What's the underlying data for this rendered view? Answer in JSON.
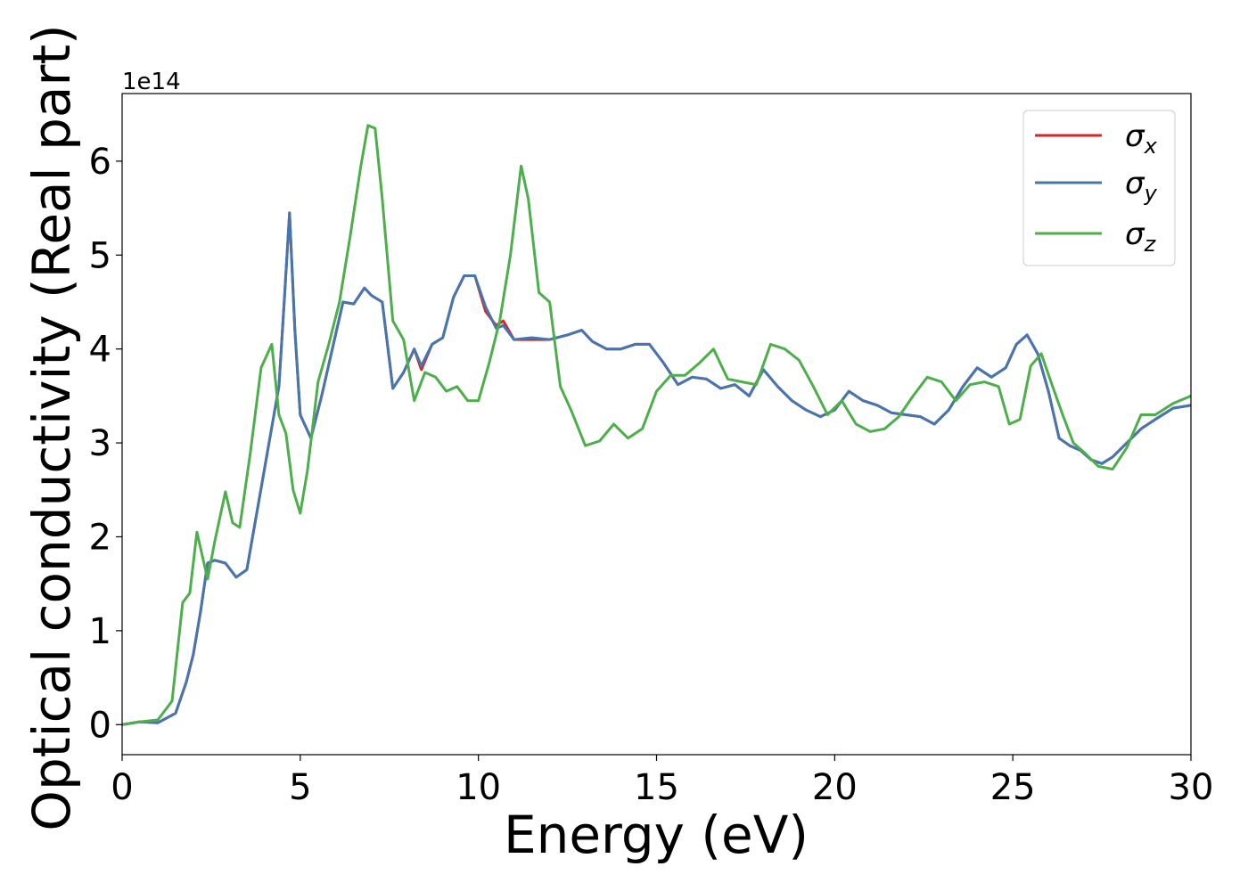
{
  "chart_data": {
    "type": "line",
    "title": "",
    "xlabel": "Energy (eV)",
    "ylabel": "Optical conductivity (Real part)",
    "y_offset_label": "1e14",
    "xlim": [
      0,
      30
    ],
    "ylim": [
      -0.32,
      6.72
    ],
    "xticks": [
      0,
      5,
      10,
      15,
      20,
      25,
      30
    ],
    "xtick_labels": [
      "0",
      "5",
      "10",
      "15",
      "20",
      "25",
      "30"
    ],
    "yticks": [
      0,
      1,
      2,
      3,
      4,
      5,
      6
    ],
    "ytick_labels": [
      "0",
      "1",
      "2",
      "3",
      "4",
      "5",
      "6"
    ],
    "grid": false,
    "legend_position": "top-right",
    "series": [
      {
        "name": "σx",
        "legend_base": "σ",
        "legend_sub": "x",
        "color": "#d62728",
        "x": [
          0,
          0.5,
          1.0,
          1.5,
          1.8,
          2.0,
          2.2,
          2.4,
          2.6,
          2.9,
          3.2,
          3.5,
          3.8,
          4.1,
          4.4,
          4.55,
          4.7,
          4.85,
          5.0,
          5.3,
          5.6,
          5.9,
          6.2,
          6.5,
          6.8,
          7.0,
          7.3,
          7.6,
          7.9,
          8.2,
          8.4,
          8.7,
          9.0,
          9.3,
          9.6,
          9.9,
          10.2,
          10.5,
          10.7,
          11.0,
          11.5,
          12.0,
          12.5,
          12.9,
          13.2,
          13.6,
          14.0,
          14.4,
          14.8,
          15.2,
          15.6,
          16.0,
          16.4,
          16.8,
          17.2,
          17.6,
          18.0,
          18.4,
          18.8,
          19.2,
          19.6,
          20.0,
          20.4,
          20.8,
          21.2,
          21.6,
          22.0,
          22.4,
          22.8,
          23.2,
          23.6,
          24.0,
          24.4,
          24.8,
          25.1,
          25.4,
          25.7,
          26.0,
          26.3,
          26.6,
          26.9,
          27.2,
          27.5,
          27.8,
          28.2,
          28.6,
          29.0,
          29.5,
          30.0
        ],
        "values": [
          0,
          0.03,
          0.02,
          0.12,
          0.45,
          0.75,
          1.2,
          1.72,
          1.75,
          1.72,
          1.57,
          1.65,
          2.3,
          2.95,
          3.6,
          4.5,
          5.45,
          4.2,
          3.3,
          3.05,
          3.5,
          4.0,
          4.5,
          4.48,
          4.65,
          4.57,
          4.5,
          3.58,
          3.75,
          4.0,
          3.78,
          4.05,
          4.12,
          4.55,
          4.78,
          4.78,
          4.4,
          4.25,
          4.3,
          4.1,
          4.1,
          4.1,
          4.15,
          4.2,
          4.08,
          4.0,
          4.0,
          4.05,
          4.05,
          3.85,
          3.62,
          3.7,
          3.68,
          3.58,
          3.62,
          3.5,
          3.78,
          3.6,
          3.45,
          3.35,
          3.28,
          3.35,
          3.55,
          3.45,
          3.4,
          3.32,
          3.3,
          3.28,
          3.2,
          3.35,
          3.6,
          3.8,
          3.7,
          3.8,
          4.05,
          4.15,
          3.95,
          3.55,
          3.05,
          2.97,
          2.92,
          2.82,
          2.78,
          2.85,
          3.0,
          3.15,
          3.25,
          3.37,
          3.4
        ]
      },
      {
        "name": "σy",
        "legend_base": "σ",
        "legend_sub": "y",
        "color": "#4477b0",
        "x": [
          0,
          0.5,
          1.0,
          1.5,
          1.8,
          2.0,
          2.2,
          2.4,
          2.6,
          2.9,
          3.2,
          3.5,
          3.8,
          4.1,
          4.4,
          4.55,
          4.7,
          4.85,
          5.0,
          5.3,
          5.6,
          5.9,
          6.2,
          6.5,
          6.8,
          7.0,
          7.3,
          7.6,
          7.9,
          8.2,
          8.4,
          8.7,
          9.0,
          9.3,
          9.6,
          9.9,
          10.2,
          10.5,
          10.7,
          11.0,
          11.5,
          12.0,
          12.5,
          12.9,
          13.2,
          13.6,
          14.0,
          14.4,
          14.8,
          15.2,
          15.6,
          16.0,
          16.4,
          16.8,
          17.2,
          17.6,
          18.0,
          18.4,
          18.8,
          19.2,
          19.6,
          20.0,
          20.4,
          20.8,
          21.2,
          21.6,
          22.0,
          22.4,
          22.8,
          23.2,
          23.6,
          24.0,
          24.4,
          24.8,
          25.1,
          25.4,
          25.7,
          26.0,
          26.3,
          26.6,
          26.9,
          27.2,
          27.5,
          27.8,
          28.2,
          28.6,
          29.0,
          29.5,
          30.0
        ],
        "values": [
          0,
          0.03,
          0.02,
          0.12,
          0.45,
          0.75,
          1.2,
          1.72,
          1.75,
          1.72,
          1.57,
          1.65,
          2.3,
          2.95,
          3.6,
          4.5,
          5.45,
          4.2,
          3.3,
          3.05,
          3.5,
          4.0,
          4.5,
          4.48,
          4.65,
          4.57,
          4.5,
          3.58,
          3.75,
          4.0,
          3.82,
          4.05,
          4.12,
          4.55,
          4.78,
          4.78,
          4.45,
          4.22,
          4.25,
          4.1,
          4.12,
          4.1,
          4.15,
          4.2,
          4.08,
          4.0,
          4.0,
          4.05,
          4.05,
          3.85,
          3.62,
          3.7,
          3.68,
          3.58,
          3.62,
          3.5,
          3.78,
          3.6,
          3.45,
          3.35,
          3.28,
          3.35,
          3.55,
          3.45,
          3.4,
          3.32,
          3.3,
          3.28,
          3.2,
          3.35,
          3.6,
          3.8,
          3.7,
          3.8,
          4.05,
          4.15,
          3.95,
          3.55,
          3.05,
          2.97,
          2.92,
          2.82,
          2.78,
          2.85,
          3.0,
          3.15,
          3.25,
          3.37,
          3.4
        ]
      },
      {
        "name": "σz",
        "legend_base": "σ",
        "legend_sub": "z",
        "color": "#4daf4a",
        "x": [
          0,
          0.5,
          1.0,
          1.4,
          1.7,
          1.9,
          2.1,
          2.25,
          2.4,
          2.6,
          2.9,
          3.1,
          3.3,
          3.6,
          3.9,
          4.2,
          4.4,
          4.6,
          4.8,
          5.0,
          5.2,
          5.5,
          5.8,
          6.1,
          6.4,
          6.7,
          6.9,
          7.1,
          7.3,
          7.6,
          7.9,
          8.2,
          8.5,
          8.8,
          9.1,
          9.4,
          9.7,
          10.0,
          10.3,
          10.6,
          10.9,
          11.2,
          11.4,
          11.7,
          12.0,
          12.3,
          12.6,
          13.0,
          13.4,
          13.8,
          14.2,
          14.6,
          15.0,
          15.4,
          15.8,
          16.2,
          16.6,
          17.0,
          17.4,
          17.8,
          18.2,
          18.6,
          19.0,
          19.4,
          19.8,
          20.2,
          20.6,
          21.0,
          21.4,
          21.8,
          22.2,
          22.6,
          23.0,
          23.4,
          23.8,
          24.2,
          24.6,
          24.9,
          25.2,
          25.5,
          25.8,
          26.1,
          26.4,
          26.7,
          27.0,
          27.4,
          27.8,
          28.2,
          28.6,
          29.0,
          29.5,
          30.0
        ],
        "values": [
          0,
          0.03,
          0.05,
          0.25,
          1.3,
          1.4,
          2.05,
          1.8,
          1.55,
          1.95,
          2.48,
          2.15,
          2.1,
          2.9,
          3.8,
          4.05,
          3.3,
          3.1,
          2.5,
          2.25,
          2.7,
          3.65,
          4.05,
          4.5,
          5.2,
          5.95,
          6.38,
          6.35,
          5.6,
          4.3,
          4.1,
          3.45,
          3.75,
          3.7,
          3.55,
          3.6,
          3.45,
          3.45,
          3.85,
          4.3,
          5.0,
          5.95,
          5.6,
          4.6,
          4.5,
          3.6,
          3.35,
          2.97,
          3.02,
          3.2,
          3.05,
          3.15,
          3.55,
          3.72,
          3.72,
          3.85,
          4.0,
          3.68,
          3.65,
          3.62,
          4.05,
          4.0,
          3.88,
          3.6,
          3.3,
          3.45,
          3.2,
          3.12,
          3.15,
          3.28,
          3.5,
          3.7,
          3.65,
          3.45,
          3.62,
          3.65,
          3.6,
          3.2,
          3.25,
          3.82,
          3.95,
          3.62,
          3.3,
          3.0,
          2.9,
          2.75,
          2.72,
          2.95,
          3.3,
          3.3,
          3.42,
          3.5
        ]
      }
    ]
  }
}
